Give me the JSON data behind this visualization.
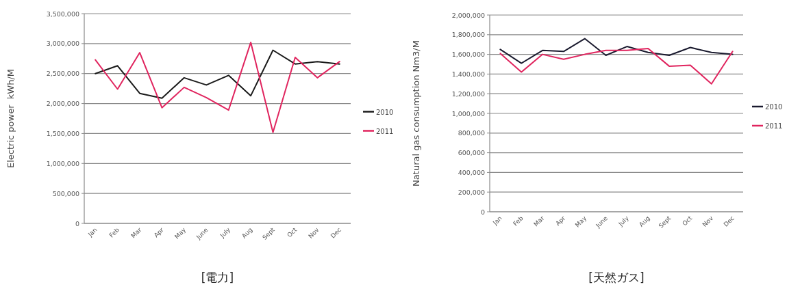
{
  "chart_data": [
    {
      "type": "line",
      "title": "[電力]",
      "ylabel": "Electric power  kWh/M",
      "categories": [
        "Jan",
        "Feb",
        "Mar",
        "Apr",
        "May",
        "June",
        "July",
        "Aug",
        "Sept",
        "Oct",
        "Nov",
        "Dec"
      ],
      "series": [
        {
          "name": "2010",
          "color": "#1a1a1a",
          "values": [
            2500000,
            2630000,
            2170000,
            2090000,
            2430000,
            2310000,
            2470000,
            2130000,
            2890000,
            2660000,
            2700000,
            2660000
          ]
        },
        {
          "name": "2011",
          "color": "#e0245e",
          "values": [
            2730000,
            2240000,
            2850000,
            1930000,
            2270000,
            2100000,
            1890000,
            3020000,
            1520000,
            2770000,
            2430000,
            2700000
          ]
        }
      ],
      "ylim": [
        0,
        3500000
      ],
      "yticks": [
        {
          "value": 0,
          "label": "0"
        },
        {
          "value": 500000,
          "label": "500,000"
        },
        {
          "value": 1000000,
          "label": "1,000,000"
        },
        {
          "value": 1500000,
          "label": "1,500,000"
        },
        {
          "value": 2000000,
          "label": "2,000,000"
        },
        {
          "value": 2500000,
          "label": "2,500,000"
        },
        {
          "value": 3000000,
          "label": "3,000,000"
        },
        {
          "value": 3500000,
          "label": "3,500,000"
        }
      ],
      "grid": "y",
      "legend": "right",
      "marker": "none",
      "line_style": "solid"
    },
    {
      "type": "line",
      "title": "[天然ガス]",
      "ylabel": "Natural gas consumption Nm3/M",
      "categories": [
        "Jan",
        "Feb",
        "Mar",
        "Apr",
        "May",
        "June",
        "July",
        "Aug",
        "Sept",
        "Oct",
        "Nov",
        "Dec"
      ],
      "series": [
        {
          "name": "2010",
          "color": "#1a1a2e",
          "values": [
            1650000,
            1510000,
            1640000,
            1630000,
            1760000,
            1590000,
            1680000,
            1620000,
            1590000,
            1670000,
            1620000,
            1600000
          ]
        },
        {
          "name": "2011",
          "color": "#e0245e",
          "values": [
            1610000,
            1420000,
            1600000,
            1550000,
            1600000,
            1640000,
            1640000,
            1660000,
            1480000,
            1490000,
            1300000,
            1630000
          ]
        }
      ],
      "ylim": [
        0,
        2000000
      ],
      "yticks": [
        {
          "value": 0,
          "label": "0"
        },
        {
          "value": 200000,
          "label": "200,000"
        },
        {
          "value": 400000,
          "label": "400,000"
        },
        {
          "value": 600000,
          "label": "600,000"
        },
        {
          "value": 800000,
          "label": "800,000"
        },
        {
          "value": 1000000,
          "label": "1,000,000"
        },
        {
          "value": 1200000,
          "label": "1,200,000"
        },
        {
          "value": 1400000,
          "label": "1,400,000"
        },
        {
          "value": 1600000,
          "label": "1,600,000"
        },
        {
          "value": 1800000,
          "label": "1,800,000"
        },
        {
          "value": 2000000,
          "label": "2,000,000"
        }
      ],
      "grid": "y",
      "legend": "right",
      "marker": "none",
      "line_style": "solid"
    }
  ]
}
